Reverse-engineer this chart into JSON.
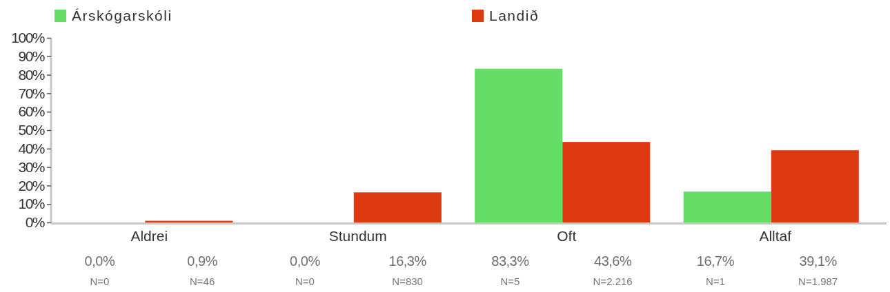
{
  "chart_data": {
    "type": "bar",
    "categories": [
      "Aldrei",
      "Stundum",
      "Oft",
      "Alltaf"
    ],
    "series": [
      {
        "name": "Árskógarskóli",
        "color": "#66dd66",
        "values": [
          0.0,
          0.0,
          83.3,
          16.7
        ],
        "value_labels": [
          "0,0%",
          "0,0%",
          "83,3%",
          "16,7%"
        ]
      },
      {
        "name": "Landið",
        "color": "#dd3a12",
        "values": [
          0.9,
          16.3,
          43.6,
          39.1
        ],
        "value_labels": [
          "0,9%",
          "16,3%",
          "43,6%",
          "39,1%"
        ]
      }
    ],
    "ylim": [
      0,
      100
    ],
    "yticks": [
      {
        "value": 0,
        "label": "0%"
      },
      {
        "value": 10,
        "label": "10%"
      },
      {
        "value": 20,
        "label": "20%"
      },
      {
        "value": 30,
        "label": "30%"
      },
      {
        "value": 40,
        "label": "40%"
      },
      {
        "value": 50,
        "label": "50%"
      },
      {
        "value": 60,
        "label": "60%"
      },
      {
        "value": 70,
        "label": "70%"
      },
      {
        "value": 80,
        "label": "80%"
      },
      {
        "value": 90,
        "label": "90%"
      },
      {
        "value": 100,
        "label": "100%"
      }
    ],
    "annotations": [
      "N=0",
      "N=46",
      "N=0",
      "N=830",
      "N=5",
      "N=2.216",
      "N=1",
      "N=1.987"
    ],
    "legend": "top",
    "grid": false
  }
}
